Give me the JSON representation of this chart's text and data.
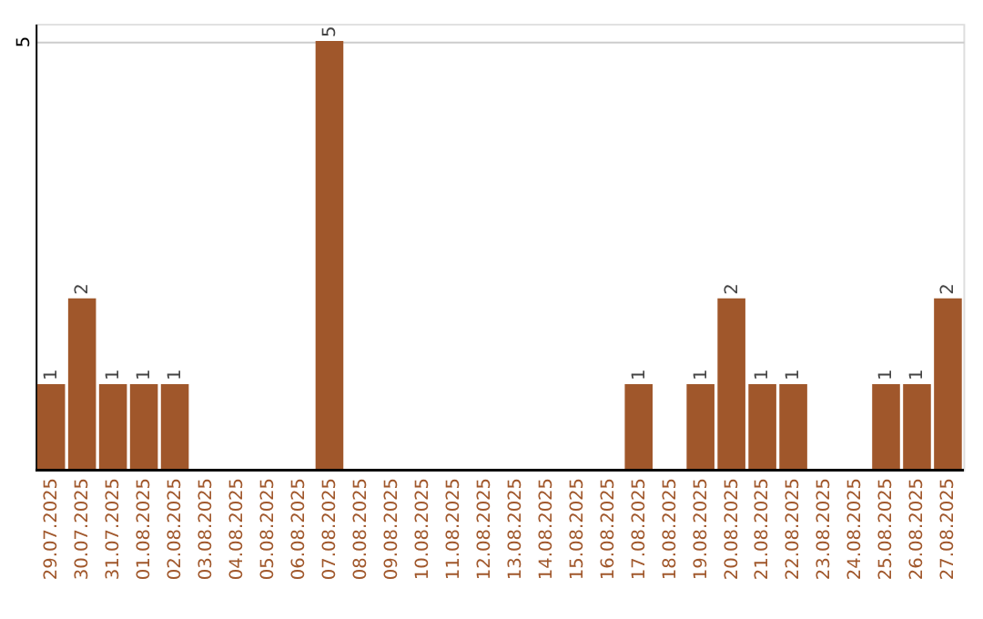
{
  "chart_data": {
    "type": "bar",
    "categories": [
      "29.07.2025",
      "30.07.2025",
      "31.07.2025",
      "01.08.2025",
      "02.08.2025",
      "03.08.2025",
      "04.08.2025",
      "05.08.2025",
      "06.08.2025",
      "07.08.2025",
      "08.08.2025",
      "09.08.2025",
      "10.08.2025",
      "11.08.2025",
      "12.08.2025",
      "13.08.2025",
      "14.08.2025",
      "15.08.2025",
      "16.08.2025",
      "17.08.2025",
      "18.08.2025",
      "19.08.2025",
      "20.08.2025",
      "21.08.2025",
      "22.08.2025",
      "23.08.2025",
      "24.08.2025",
      "25.08.2025",
      "26.08.2025",
      "27.08.2025"
    ],
    "values": [
      1,
      2,
      1,
      1,
      1,
      0,
      0,
      0,
      0,
      5,
      0,
      0,
      0,
      0,
      0,
      0,
      0,
      0,
      0,
      1,
      0,
      1,
      2,
      1,
      1,
      0,
      0,
      1,
      1,
      2
    ],
    "value_labels": [
      "1",
      "2",
      "1",
      "1",
      "1",
      null,
      null,
      null,
      null,
      "5",
      null,
      null,
      null,
      null,
      null,
      null,
      null,
      null,
      null,
      "1",
      null,
      "1",
      "2",
      "1",
      "1",
      null,
      null,
      "1",
      "1",
      "2"
    ],
    "color": "#a0572b",
    "ylim": [
      0,
      5.2
    ],
    "yticks": [
      5
    ],
    "grid": "y"
  }
}
